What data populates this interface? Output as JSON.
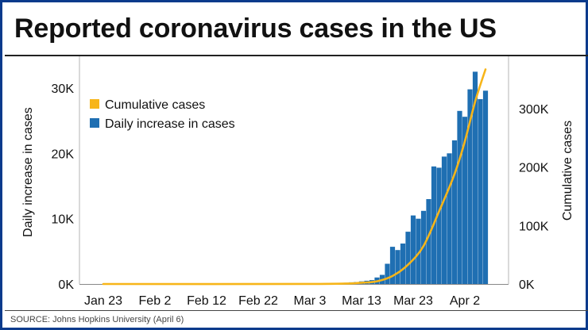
{
  "title": "Reported coronavirus cases in the US",
  "source": "SOURCE: Johns Hopkins University (April 6)",
  "colors": {
    "daily": "#1f6fb2",
    "cumulative": "#f7b519",
    "frame": "#0a3a8c"
  },
  "chart_data": {
    "type": "bar",
    "title": "Reported coronavirus cases in the US",
    "x_tick_labels": [
      "Jan 23",
      "Feb 2",
      "Feb 12",
      "Feb 22",
      "Mar 3",
      "Mar 13",
      "Mar 23",
      "Apr 2"
    ],
    "ylabel": "Daily increase in cases",
    "y2label": "Cumulative cases",
    "ylim": [
      0,
      35000
    ],
    "y2lim": [
      0,
      380000
    ],
    "y_ticks": [
      0,
      10000,
      20000,
      30000
    ],
    "y_tick_labels": [
      "0K",
      "10K",
      "20K",
      "30K"
    ],
    "y2_ticks": [
      0,
      100000,
      200000,
      300000
    ],
    "y2_tick_labels": [
      "0K",
      "100K",
      "200K",
      "300K"
    ],
    "legend": {
      "position": "top-left",
      "items": [
        "Cumulative cases",
        "Daily increase in cases"
      ]
    },
    "grid": false,
    "series": [
      {
        "name": "Daily increase in cases",
        "type": "bar",
        "axis": "left",
        "x": [
          "Mar 5",
          "Mar 6",
          "Mar 7",
          "Mar 8",
          "Mar 9",
          "Mar 10",
          "Mar 11",
          "Mar 12",
          "Mar 13",
          "Mar 14",
          "Mar 15",
          "Mar 16",
          "Mar 17",
          "Mar 18",
          "Mar 19",
          "Mar 20",
          "Mar 21",
          "Mar 22",
          "Mar 23",
          "Mar 24",
          "Mar 25",
          "Mar 26",
          "Mar 27",
          "Mar 28",
          "Mar 29",
          "Mar 30",
          "Mar 31",
          "Apr 1",
          "Apr 2",
          "Apr 3",
          "Apr 4",
          "Apr 5",
          "Apr 6"
        ],
        "values": [
          60,
          80,
          100,
          120,
          150,
          200,
          250,
          300,
          400,
          500,
          600,
          1000,
          1400,
          3100,
          5700,
          5200,
          6200,
          8000,
          10500,
          10000,
          11200,
          13000,
          18000,
          17800,
          19500,
          20000,
          22000,
          26500,
          25600,
          29800,
          32500,
          28300,
          29600
        ]
      },
      {
        "name": "Cumulative cases",
        "type": "line",
        "axis": "right",
        "x": [
          "Jan 23",
          "Mar 5",
          "Mar 13",
          "Mar 16",
          "Mar 19",
          "Mar 22",
          "Mar 25",
          "Mar 28",
          "Mar 31",
          "Apr 2",
          "Apr 4",
          "Apr 6"
        ],
        "values": [
          1,
          200,
          2200,
          4600,
          13700,
          33000,
          65000,
          124000,
          188000,
          244000,
          312000,
          367000
        ]
      }
    ]
  }
}
